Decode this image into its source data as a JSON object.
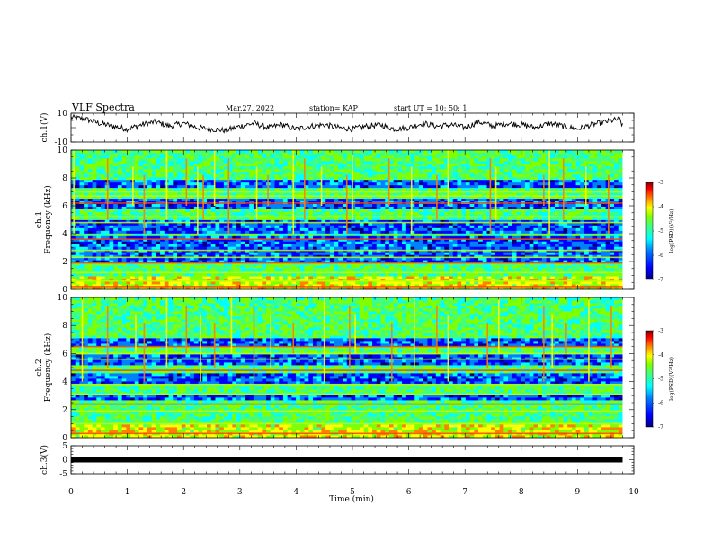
{
  "header": {
    "title": "VLF Spectra",
    "date": "Mar.27, 2022",
    "station": "station= KAP",
    "start": "start  UT  =   10: 50: 1"
  },
  "colors": {
    "spectrogram_scale": [
      "#00007f",
      "#0000ff",
      "#0080ff",
      "#00ffff",
      "#40ff80",
      "#80ff00",
      "#ffff00",
      "#ff8000",
      "#ff0000",
      "#7f0000"
    ],
    "waveform": "#000000",
    "axes": "#000000"
  },
  "chart_data": [
    {
      "type": "line",
      "panel": "ch1-waveform",
      "ylabel": "ch.1(V)",
      "xlabel": "",
      "xlim": [
        0,
        10
      ],
      "ylim": [
        -10,
        10
      ],
      "y_tick_labels": [
        "10",
        "-10"
      ],
      "series": [
        {
          "x": [
            0,
            0.25,
            0.5,
            0.75,
            1,
            1.25,
            1.5,
            1.75,
            2,
            2.25,
            2.5,
            2.75,
            3,
            3.25,
            3.5,
            3.75,
            4,
            4.25,
            4.5,
            4.75,
            5,
            5.25,
            5.5,
            5.75,
            6,
            6.25,
            6.5,
            6.75,
            7,
            7.25,
            7.5,
            7.75,
            8,
            8.25,
            8.5,
            8.75,
            9,
            9.25,
            9.5,
            9.75,
            9.8
          ],
          "values": [
            7,
            6,
            3,
            1,
            -1,
            2,
            4,
            1,
            3,
            0,
            -1,
            -2,
            1,
            3,
            0,
            2,
            -1,
            1,
            2,
            0,
            -1,
            1,
            2,
            -1,
            0,
            3,
            1,
            2,
            0,
            4,
            1,
            3,
            2,
            0,
            3,
            1,
            -1,
            2,
            4,
            6,
            1
          ]
        }
      ]
    },
    {
      "type": "heatmap",
      "panel": "ch1-spectrogram",
      "ylabel": "ch.1\nFrequency  (kHz)",
      "xlabel": "",
      "xlim": [
        0,
        10
      ],
      "ylim": [
        0,
        10
      ],
      "data_end_min": 9.8,
      "y_ticks": [
        0,
        2,
        4,
        6,
        8,
        10
      ],
      "colorbar": {
        "label": "log(PSD)(V²/Hz)",
        "range": [
          -7,
          -3
        ],
        "ticks": [
          -3,
          -4,
          -5,
          -6,
          -7
        ]
      },
      "frequency_bands_kHz": [
        0.2,
        0.6,
        1.2,
        1.9,
        2.3,
        2.8,
        3.6,
        4.8,
        5.2,
        6.2,
        6.7,
        7.0
      ],
      "low_power_bands_kHz": [
        [
          2.0,
          3.8
        ],
        [
          4.1,
          5.0
        ],
        [
          5.8,
          6.6
        ],
        [
          7.3,
          7.8
        ]
      ],
      "sferic_times_min": [
        0.05,
        0.65,
        1.1,
        1.3,
        1.7,
        2.05,
        2.25,
        2.35,
        2.55,
        2.8,
        3.3,
        3.5,
        3.95,
        4.15,
        4.45,
        4.9,
        5.0,
        5.65,
        6.05,
        6.5,
        6.7,
        7.45,
        7.55,
        8.4,
        8.5,
        8.75,
        9.15,
        9.55
      ]
    },
    {
      "type": "heatmap",
      "panel": "ch2-spectrogram",
      "ylabel": "ch.2\nFrequency  (kHz)",
      "xlabel": "",
      "xlim": [
        0,
        10
      ],
      "ylim": [
        0,
        10
      ],
      "data_end_min": 9.8,
      "y_ticks": [
        0,
        2,
        4,
        6,
        8,
        10
      ],
      "colorbar": {
        "label": "log(PSD)(V²/Hz)",
        "range": [
          -7,
          -3
        ],
        "ticks": [
          -3,
          -4,
          -5,
          -6,
          -7
        ]
      },
      "frequency_bands_kHz": [
        0.3,
        1.0,
        1.9,
        2.4,
        3.1,
        3.8,
        4.8,
        5.6,
        6.0,
        6.5
      ],
      "low_power_bands_kHz": [
        [
          2.6,
          3.0
        ],
        [
          3.9,
          4.6
        ],
        [
          5.2,
          5.9
        ],
        [
          6.6,
          7.2
        ]
      ],
      "sferic_times_min": [
        0.2,
        0.65,
        1.15,
        1.3,
        1.7,
        2.05,
        2.3,
        2.55,
        2.85,
        3.25,
        3.55,
        3.95,
        4.5,
        4.95,
        5.05,
        5.7,
        6.1,
        6.5,
        6.7,
        7.4,
        7.6,
        8.4,
        8.55,
        8.8,
        9.2,
        9.6
      ]
    },
    {
      "type": "line",
      "panel": "ch3-waveform",
      "ylabel": "ch.3(V)",
      "xlabel": "Time  (min)",
      "xlim": [
        0,
        10
      ],
      "ylim": [
        -5,
        5
      ],
      "y_tick_labels": [
        "5",
        "0",
        "-5"
      ],
      "x_tick_labels": [
        "0",
        "1",
        "2",
        "3",
        "4",
        "5",
        "6",
        "7",
        "8",
        "9",
        "10"
      ],
      "series": [
        {
          "x": [
            0,
            9.8
          ],
          "values": [
            0,
            0
          ]
        }
      ]
    }
  ]
}
